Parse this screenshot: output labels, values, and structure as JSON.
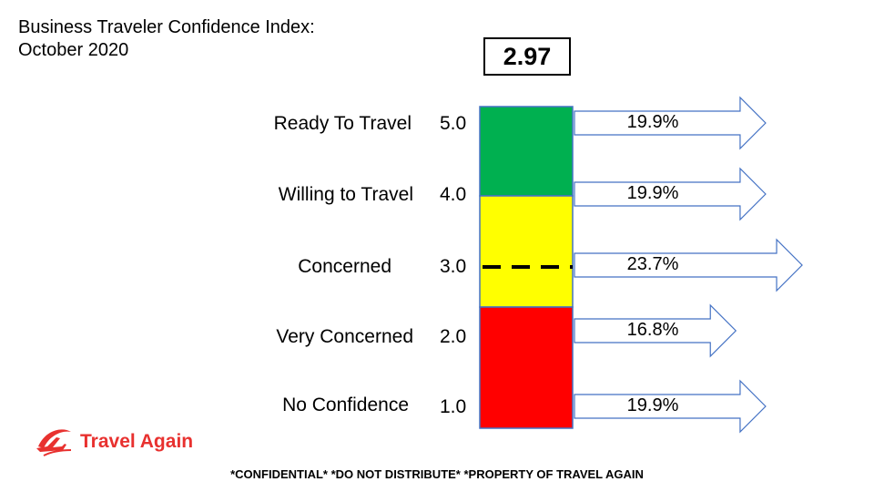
{
  "title_line1": "Business Traveler Confidence Index:",
  "title_line2": "October 2020",
  "chart_data": {
    "type": "bar",
    "score": "2.97",
    "categories": [
      "Ready To Travel",
      "Willing to Travel",
      "Concerned",
      "Very Concerned",
      "No Confidence"
    ],
    "levels": [
      "5.0",
      "4.0",
      "3.0",
      "2.0",
      "1.0"
    ],
    "values": [
      19.9,
      19.9,
      23.7,
      16.8,
      19.9
    ],
    "value_labels": [
      "19.9%",
      "19.9%",
      "23.7%",
      "16.8%",
      "19.9%"
    ],
    "bands": [
      {
        "color": "#00b050"
      },
      {
        "color": "#ffff00"
      },
      {
        "color": "#ff0000"
      }
    ],
    "marker_level": 3.0
  },
  "logo": {
    "text": "Travel Again",
    "icon": "plane-swoosh-icon",
    "color": "#e8312f"
  },
  "footer": "*CONFIDENTIAL*  *DO NOT DISTRIBUTE* *PROPERTY OF TRAVEL AGAIN"
}
